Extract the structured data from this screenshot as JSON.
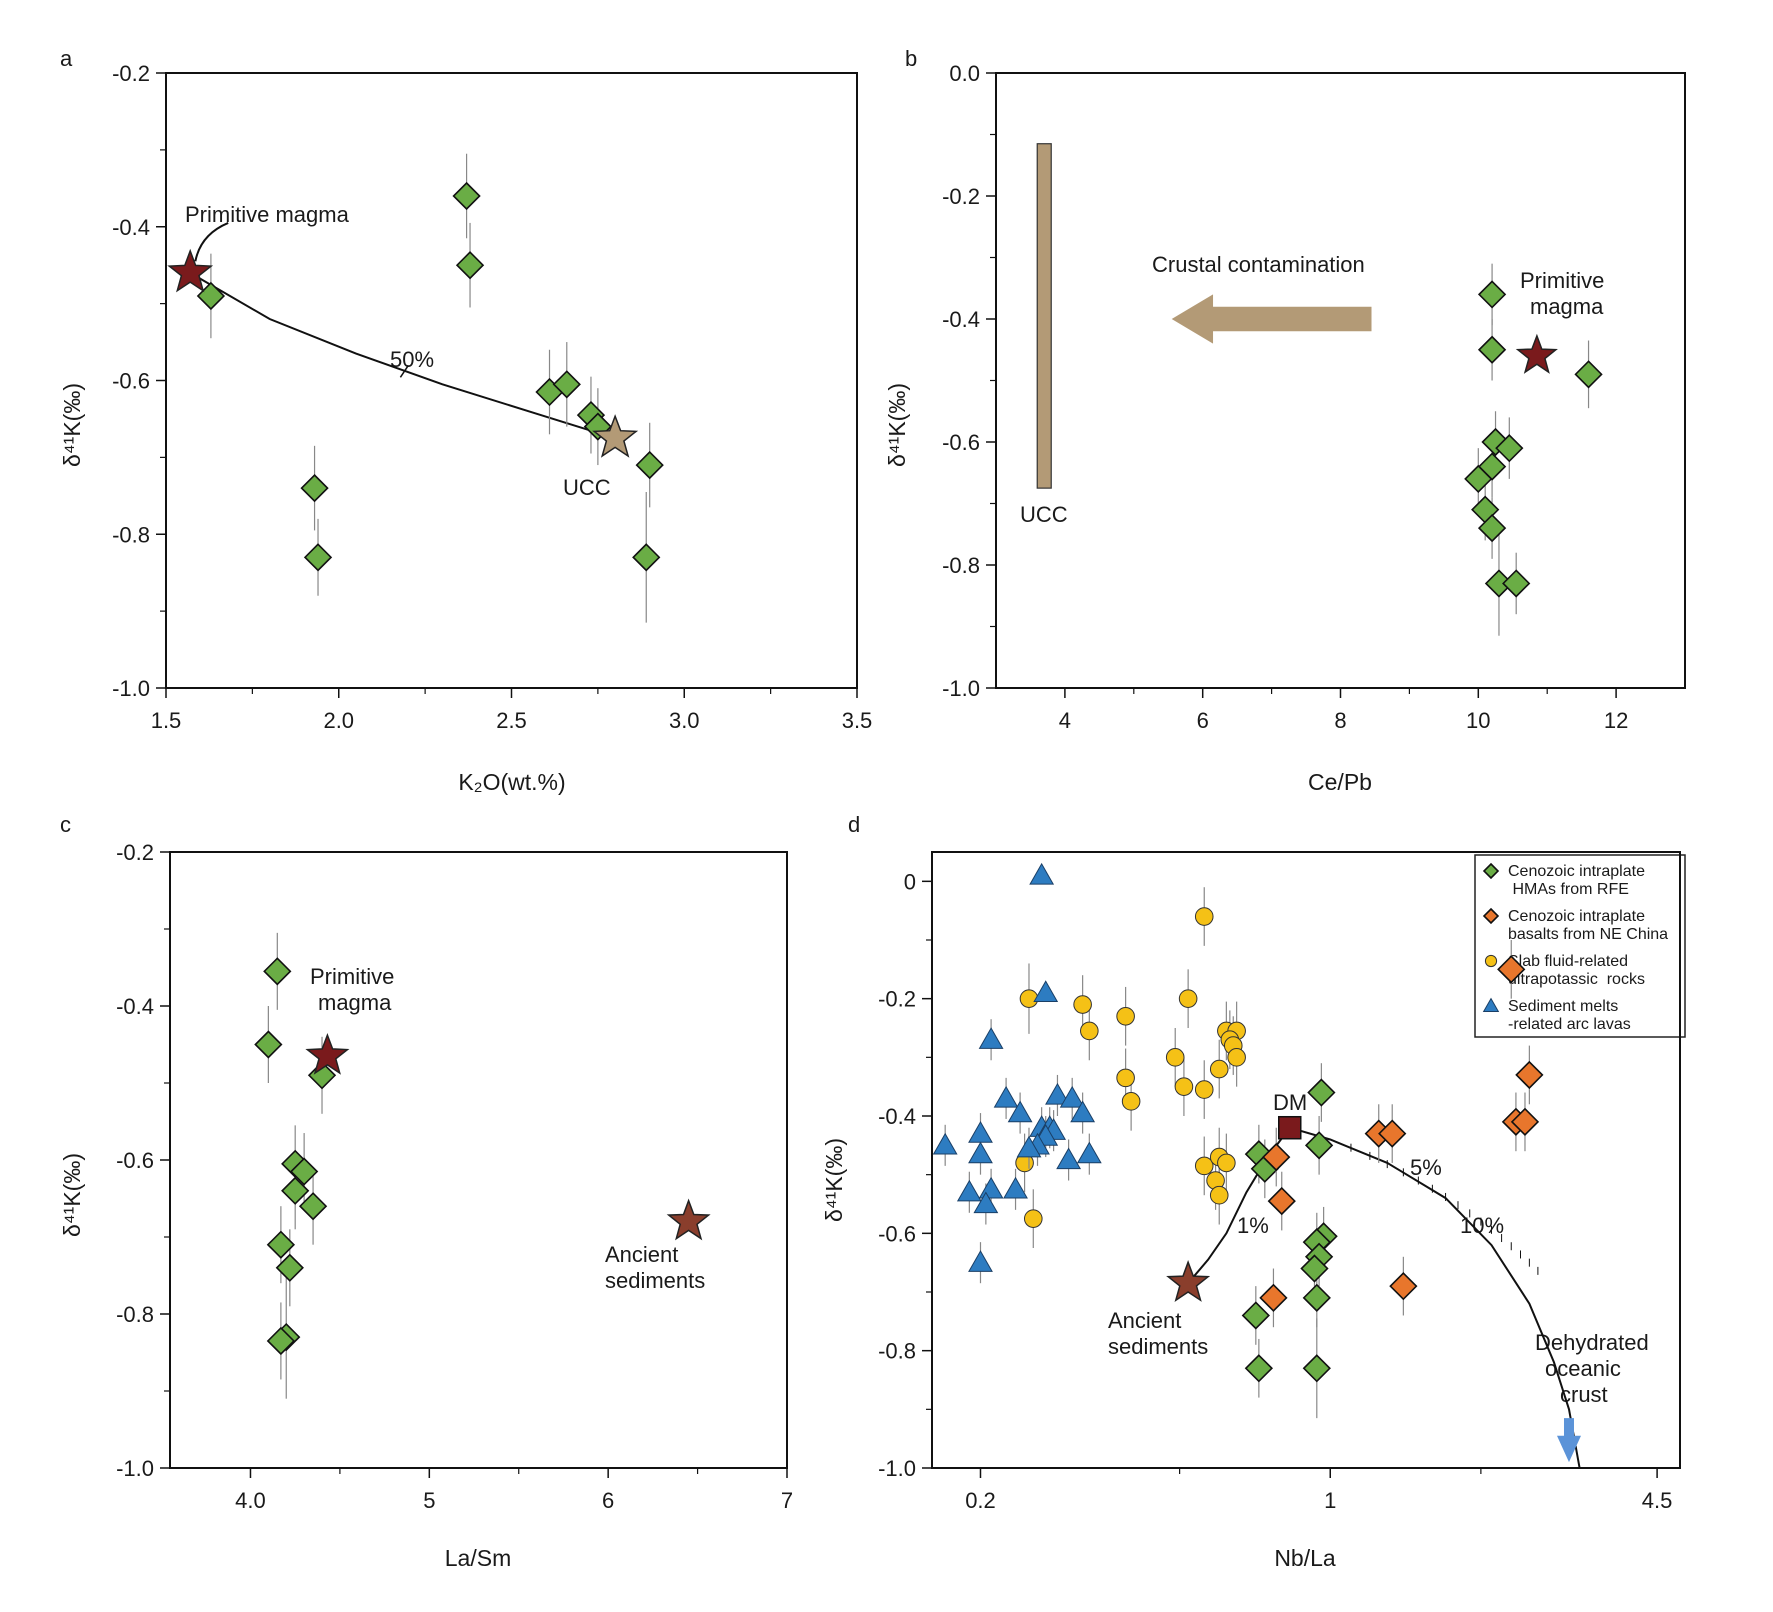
{
  "chart_data": [
    {
      "id": "a",
      "type": "scatter",
      "panel_label": "a",
      "xlabel": "K₂O(wt.%)",
      "ylabel": "δ⁴¹K(‰)",
      "xlim": [
        1.5,
        3.5
      ],
      "ylim": [
        -1.0,
        -0.2
      ],
      "xticks": [
        "1.5",
        "2.0",
        "2.5",
        "3.0",
        "3.5"
      ],
      "yticks": [
        "-0.2",
        "-0.4",
        "-0.6",
        "-0.8",
        "-1.0"
      ],
      "series": [
        {
          "marker": "diamond",
          "color": "#6aad45",
          "points": [
            {
              "x": 1.63,
              "y": -0.49,
              "err": 0.055
            },
            {
              "x": 2.37,
              "y": -0.36,
              "err": 0.055
            },
            {
              "x": 2.38,
              "y": -0.45,
              "err": 0.055
            },
            {
              "x": 1.93,
              "y": -0.74,
              "err": 0.055
            },
            {
              "x": 1.94,
              "y": -0.83,
              "err": 0.05
            },
            {
              "x": 2.61,
              "y": -0.615,
              "err": 0.055
            },
            {
              "x": 2.66,
              "y": -0.605,
              "err": 0.055
            },
            {
              "x": 2.73,
              "y": -0.645,
              "err": 0.05
            },
            {
              "x": 2.75,
              "y": -0.66,
              "err": 0.05
            },
            {
              "x": 2.9,
              "y": -0.71,
              "err": 0.055
            },
            {
              "x": 2.89,
              "y": -0.83,
              "err": 0.085
            }
          ]
        }
      ],
      "stars": [
        {
          "x": 1.57,
          "y": -0.46,
          "color": "#7a1a1c"
        },
        {
          "x": 2.8,
          "y": -0.675,
          "color": "#b39a76"
        }
      ],
      "mixing_curve": [
        [
          1.57,
          -0.46
        ],
        [
          1.8,
          -0.52
        ],
        [
          2.05,
          -0.565
        ],
        [
          2.3,
          -0.605
        ],
        [
          2.55,
          -0.64
        ],
        [
          2.8,
          -0.675
        ]
      ],
      "annotations": {
        "primitive": "Primitive magma",
        "ucc": "UCC",
        "pct": "50%"
      }
    },
    {
      "id": "b",
      "type": "scatter",
      "panel_label": "b",
      "xlabel": "Ce/Pb",
      "ylabel": "δ⁴¹K(‰)",
      "xlim": [
        3,
        13
      ],
      "ylim": [
        -1.0,
        0.0
      ],
      "xticks": [
        "4",
        "6",
        "8",
        "10",
        "12"
      ],
      "yticks": [
        "0.0",
        "-0.2",
        "-0.4",
        "-0.6",
        "-0.8",
        "-1.0"
      ],
      "series": [
        {
          "marker": "diamond",
          "color": "#6aad45",
          "points": [
            {
              "x": 10.2,
              "y": -0.36,
              "err": 0.05
            },
            {
              "x": 10.2,
              "y": -0.45,
              "err": 0.05
            },
            {
              "x": 11.6,
              "y": -0.49,
              "err": 0.055
            },
            {
              "x": 10.25,
              "y": -0.6,
              "err": 0.05
            },
            {
              "x": 10.45,
              "y": -0.61,
              "err": 0.05
            },
            {
              "x": 10.2,
              "y": -0.64,
              "err": 0.05
            },
            {
              "x": 10.0,
              "y": -0.66,
              "err": 0.05
            },
            {
              "x": 10.1,
              "y": -0.71,
              "err": 0.05
            },
            {
              "x": 10.2,
              "y": -0.74,
              "err": 0.05
            },
            {
              "x": 10.3,
              "y": -0.83,
              "err": 0.085
            },
            {
              "x": 10.55,
              "y": -0.83,
              "err": 0.05
            }
          ]
        }
      ],
      "stars": [
        {
          "x": 10.85,
          "y": -0.46,
          "color": "#7a1a1c"
        }
      ],
      "ucc_bar": {
        "x": 3.7,
        "y1": -0.115,
        "y2": -0.675
      },
      "annotations": {
        "crustal": "Crustal contamination",
        "primitive1": "Primitive",
        "primitive2": "magma",
        "ucc": "UCC"
      }
    },
    {
      "id": "c",
      "type": "scatter",
      "panel_label": "c",
      "xlabel": "La/Sm",
      "ylabel": "δ⁴¹K(‰)",
      "xlim": [
        3.55,
        7.0
      ],
      "ylim": [
        -1.0,
        -0.2
      ],
      "xticks": [
        "4.0",
        "5",
        "6",
        "7"
      ],
      "yticks": [
        "-0.2",
        "-0.4",
        "-0.6",
        "-0.8",
        "-1.0"
      ],
      "series": [
        {
          "marker": "diamond",
          "color": "#6aad45",
          "points": [
            {
              "x": 4.15,
              "y": -0.355,
              "err": 0.05
            },
            {
              "x": 4.1,
              "y": -0.45,
              "err": 0.05
            },
            {
              "x": 4.4,
              "y": -0.49,
              "err": 0.05
            },
            {
              "x": 4.25,
              "y": -0.605,
              "err": 0.05
            },
            {
              "x": 4.3,
              "y": -0.615,
              "err": 0.05
            },
            {
              "x": 4.25,
              "y": -0.64,
              "err": 0.05
            },
            {
              "x": 4.35,
              "y": -0.66,
              "err": 0.05
            },
            {
              "x": 4.17,
              "y": -0.71,
              "err": 0.05
            },
            {
              "x": 4.22,
              "y": -0.74,
              "err": 0.05
            },
            {
              "x": 4.2,
              "y": -0.83,
              "err": 0.08
            },
            {
              "x": 4.17,
              "y": -0.835,
              "err": 0.05
            }
          ]
        }
      ],
      "stars": [
        {
          "x": 4.43,
          "y": -0.465,
          "color": "#7a1a1c"
        },
        {
          "x": 6.45,
          "y": -0.68,
          "color": "#8a3e2c"
        }
      ],
      "annotations": {
        "primitive1": "Primitive",
        "primitive2": "magma",
        "ancient1": "Ancient",
        "ancient2": "sediments"
      }
    },
    {
      "id": "d",
      "type": "scatter",
      "panel_label": "d",
      "xlabel": "Nb/La",
      "ylabel": "δ⁴¹K(‰)",
      "xscale": "log",
      "xlim": [
        0.16,
        5.0
      ],
      "ylim": [
        -1.0,
        0.05
      ],
      "xticks": [
        {
          "v": 0.2,
          "label": "0.2"
        },
        {
          "v": 1,
          "label": "1"
        },
        {
          "v": 4.5,
          "label": "4.5"
        }
      ],
      "yticks": [
        "0",
        "-0.2",
        "-0.4",
        "-0.6",
        "-0.8",
        "-1.0"
      ],
      "series": [
        {
          "name": "Cenozoic intraplate HMAs from RFE",
          "marker": "diamond",
          "color": "#6aad45",
          "points": [
            {
              "x": 0.96,
              "y": -0.36,
              "err": 0.05
            },
            {
              "x": 0.95,
              "y": -0.45,
              "err": 0.05
            },
            {
              "x": 0.72,
              "y": -0.465,
              "err": 0.05
            },
            {
              "x": 0.74,
              "y": -0.49,
              "err": 0.05
            },
            {
              "x": 0.97,
              "y": -0.605,
              "err": 0.05
            },
            {
              "x": 0.94,
              "y": -0.615,
              "err": 0.05
            },
            {
              "x": 0.95,
              "y": -0.64,
              "err": 0.05
            },
            {
              "x": 0.93,
              "y": -0.66,
              "err": 0.05
            },
            {
              "x": 0.94,
              "y": -0.71,
              "err": 0.05
            },
            {
              "x": 0.71,
              "y": -0.74,
              "err": 0.05
            },
            {
              "x": 0.72,
              "y": -0.83,
              "err": 0.05
            },
            {
              "x": 0.94,
              "y": -0.83,
              "err": 0.085
            }
          ]
        },
        {
          "name": "Cenozoic intraplate basalts from NE China",
          "marker": "diamond",
          "color": "#e8762c",
          "points": [
            {
              "x": 2.3,
              "y": -0.15,
              "err": 0.05
            },
            {
              "x": 2.5,
              "y": -0.33,
              "err": 0.05
            },
            {
              "x": 2.35,
              "y": -0.41,
              "err": 0.05
            },
            {
              "x": 2.45,
              "y": -0.41,
              "err": 0.05
            },
            {
              "x": 1.25,
              "y": -0.43,
              "err": 0.05
            },
            {
              "x": 1.33,
              "y": -0.43,
              "err": 0.05
            },
            {
              "x": 0.78,
              "y": -0.47,
              "err": 0.05
            },
            {
              "x": 0.8,
              "y": -0.545,
              "err": 0.05
            },
            {
              "x": 0.77,
              "y": -0.71,
              "err": 0.05
            },
            {
              "x": 1.4,
              "y": -0.69,
              "err": 0.05
            }
          ]
        },
        {
          "name": "Slab fluid-related ultrapotassic rocks",
          "marker": "circle",
          "color": "#f5c116",
          "points": [
            {
              "x": 0.56,
              "y": -0.06,
              "err": 0.05
            },
            {
              "x": 0.25,
              "y": -0.2,
              "err": 0.06
            },
            {
              "x": 0.32,
              "y": -0.21,
              "err": 0.05
            },
            {
              "x": 0.39,
              "y": -0.23,
              "err": 0.05
            },
            {
              "x": 0.52,
              "y": -0.2,
              "err": 0.05
            },
            {
              "x": 0.33,
              "y": -0.255,
              "err": 0.05
            },
            {
              "x": 0.62,
              "y": -0.255,
              "err": 0.05
            },
            {
              "x": 0.65,
              "y": -0.255,
              "err": 0.05
            },
            {
              "x": 0.63,
              "y": -0.27,
              "err": 0.05
            },
            {
              "x": 0.64,
              "y": -0.28,
              "err": 0.05
            },
            {
              "x": 0.65,
              "y": -0.3,
              "err": 0.05
            },
            {
              "x": 0.49,
              "y": -0.3,
              "err": 0.05
            },
            {
              "x": 0.6,
              "y": -0.32,
              "err": 0.05
            },
            {
              "x": 0.39,
              "y": -0.335,
              "err": 0.05
            },
            {
              "x": 0.51,
              "y": -0.35,
              "err": 0.05
            },
            {
              "x": 0.56,
              "y": -0.355,
              "err": 0.05
            },
            {
              "x": 0.4,
              "y": -0.375,
              "err": 0.05
            },
            {
              "x": 0.245,
              "y": -0.48,
              "err": 0.05
            },
            {
              "x": 0.56,
              "y": -0.485,
              "err": 0.05
            },
            {
              "x": 0.6,
              "y": -0.47,
              "err": 0.05
            },
            {
              "x": 0.62,
              "y": -0.48,
              "err": 0.05
            },
            {
              "x": 0.59,
              "y": -0.51,
              "err": 0.05
            },
            {
              "x": 0.6,
              "y": -0.535,
              "err": 0.05
            },
            {
              "x": 0.255,
              "y": -0.575,
              "err": 0.05
            }
          ]
        },
        {
          "name": "Sediment melts -related arc lavas",
          "marker": "triangle",
          "color": "#2d7cc1",
          "points": [
            {
              "x": 0.265,
              "y": 0.01,
              "err": 0.0
            },
            {
              "x": 0.27,
              "y": -0.19,
              "err": 0.0
            },
            {
              "x": 0.21,
              "y": -0.27,
              "err": 0.035
            },
            {
              "x": 0.225,
              "y": -0.37,
              "err": 0.035
            },
            {
              "x": 0.285,
              "y": -0.365,
              "err": 0.035
            },
            {
              "x": 0.305,
              "y": -0.37,
              "err": 0.035
            },
            {
              "x": 0.24,
              "y": -0.395,
              "err": 0.035
            },
            {
              "x": 0.32,
              "y": -0.395,
              "err": 0.035
            },
            {
              "x": 0.265,
              "y": -0.42,
              "err": 0.035
            },
            {
              "x": 0.275,
              "y": -0.42,
              "err": 0.035
            },
            {
              "x": 0.28,
              "y": -0.425,
              "err": 0.035
            },
            {
              "x": 0.27,
              "y": -0.435,
              "err": 0.035
            },
            {
              "x": 0.2,
              "y": -0.43,
              "err": 0.035
            },
            {
              "x": 0.17,
              "y": -0.45,
              "err": 0.035
            },
            {
              "x": 0.26,
              "y": -0.45,
              "err": 0.035
            },
            {
              "x": 0.2,
              "y": -0.465,
              "err": 0.035
            },
            {
              "x": 0.33,
              "y": -0.465,
              "err": 0.035
            },
            {
              "x": 0.3,
              "y": -0.475,
              "err": 0.035
            },
            {
              "x": 0.25,
              "y": -0.455,
              "err": 0.035
            },
            {
              "x": 0.19,
              "y": -0.53,
              "err": 0.035
            },
            {
              "x": 0.21,
              "y": -0.525,
              "err": 0.035
            },
            {
              "x": 0.235,
              "y": -0.525,
              "err": 0.035
            },
            {
              "x": 0.205,
              "y": -0.55,
              "err": 0.035
            },
            {
              "x": 0.2,
              "y": -0.65,
              "err": 0.035
            }
          ]
        }
      ],
      "dm": {
        "x": 0.83,
        "y": -0.42
      },
      "star": {
        "x": 0.52,
        "y": -0.685,
        "color": "#8a3e2c"
      },
      "curve_left": [
        [
          0.83,
          -0.42
        ],
        [
          0.75,
          -0.47
        ],
        [
          0.68,
          -0.53
        ],
        [
          0.62,
          -0.6
        ],
        [
          0.57,
          -0.645
        ],
        [
          0.52,
          -0.685
        ]
      ],
      "curve_right": [
        [
          0.83,
          -0.42
        ],
        [
          1.0,
          -0.44
        ],
        [
          1.3,
          -0.48
        ],
        [
          1.7,
          -0.54
        ],
        [
          2.1,
          -0.62
        ],
        [
          2.5,
          -0.72
        ],
        [
          2.8,
          -0.82
        ],
        [
          3.0,
          -0.9
        ],
        [
          3.15,
          -1.0
        ]
      ],
      "annotations": {
        "dm": "DM",
        "pct1": "1%",
        "pct5": "5%",
        "pct10": "10%",
        "ancient1": "Ancient",
        "ancient2": "sediments",
        "doc1": "Dehydrated",
        "doc2": "oceanic",
        "doc3": "crust"
      },
      "legend": {
        "position": "top-right",
        "items": [
          {
            "marker": "diamond",
            "color": "#6aad45",
            "line1": "Cenozoic intraplate",
            "line2": " HMAs from RFE"
          },
          {
            "marker": "diamond",
            "color": "#e8762c",
            "line1": "Cenozoic intraplate",
            "line2": "basalts from NE China"
          },
          {
            "marker": "circle",
            "color": "#f5c116",
            "line1": "Slab fluid-related",
            "line2": "ultrapotassic  rocks"
          },
          {
            "marker": "triangle",
            "color": "#2d7cc1",
            "line1": "Sediment melts",
            "line2": "-related arc lavas"
          }
        ]
      }
    }
  ]
}
